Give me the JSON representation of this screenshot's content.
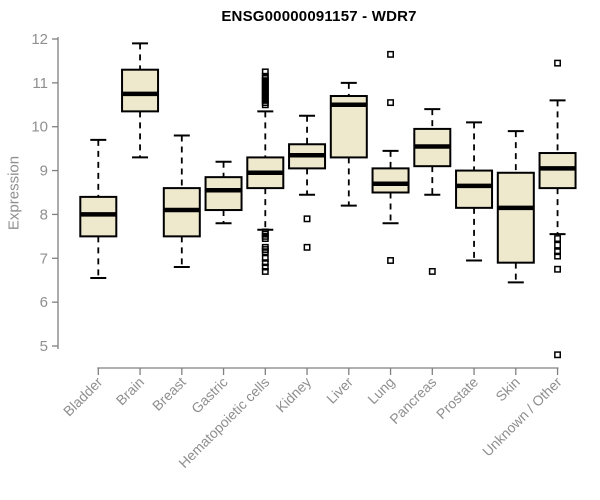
{
  "title": "ENSG00000091157 - WDR7",
  "colors": {
    "box_fill": "#EEE8CD",
    "box_stroke": "#000000",
    "axis": "#808080",
    "labels": "#8f8f8f",
    "title": "#000000",
    "background": "#ffffff"
  },
  "chart_data": {
    "type": "boxplot",
    "title": "ENSG00000091157 - WDR7",
    "xlabel": "",
    "ylabel": "Expression",
    "ylim": [
      5,
      12
    ],
    "yticks": [
      5,
      6,
      7,
      8,
      9,
      10,
      11,
      12
    ],
    "grid": false,
    "legend": null,
    "x_label_rotation": 45,
    "categories": [
      "Bladder",
      "Brain",
      "Breast",
      "Gastric",
      "Hematopoietic cells",
      "Kidney",
      "Liver",
      "Lung",
      "Pancreas",
      "Prostate",
      "Skin",
      "Unknown / Other"
    ],
    "series": [
      {
        "category": "Bladder",
        "whisker_low": 6.55,
        "q1": 7.5,
        "median": 8.0,
        "q3": 8.4,
        "whisker_high": 9.7,
        "outliers": []
      },
      {
        "category": "Brain",
        "whisker_low": 9.3,
        "q1": 10.35,
        "median": 10.75,
        "q3": 11.3,
        "whisker_high": 11.9,
        "outliers": []
      },
      {
        "category": "Breast",
        "whisker_low": 6.8,
        "q1": 7.5,
        "median": 8.1,
        "q3": 8.6,
        "whisker_high": 9.8,
        "outliers": []
      },
      {
        "category": "Gastric",
        "whisker_low": 7.8,
        "q1": 8.1,
        "median": 8.55,
        "q3": 8.85,
        "whisker_high": 9.2,
        "outliers": []
      },
      {
        "category": "Hematopoietic cells",
        "whisker_low": 7.65,
        "q1": 8.6,
        "median": 8.95,
        "q3": 9.3,
        "whisker_high": 10.35,
        "outliers": [
          11.25,
          11.15,
          11.1,
          11.05,
          11.0,
          10.95,
          10.9,
          10.85,
          10.8,
          10.75,
          10.7,
          10.65,
          10.6,
          10.55,
          10.5,
          7.6,
          7.55,
          7.5,
          7.45,
          7.25,
          7.2,
          7.15,
          7.0,
          6.9,
          6.8,
          6.7
        ]
      },
      {
        "category": "Kidney",
        "whisker_low": 8.45,
        "q1": 9.05,
        "median": 9.35,
        "q3": 9.6,
        "whisker_high": 10.25,
        "outliers": [
          7.9,
          7.25
        ]
      },
      {
        "category": "Liver",
        "whisker_low": 8.2,
        "q1": 9.3,
        "median": 10.5,
        "q3": 10.7,
        "whisker_high": 11.0,
        "outliers": []
      },
      {
        "category": "Lung",
        "whisker_low": 7.8,
        "q1": 8.5,
        "median": 8.7,
        "q3": 9.05,
        "whisker_high": 9.45,
        "outliers": [
          11.65,
          10.55,
          6.95
        ]
      },
      {
        "category": "Pancreas",
        "whisker_low": 8.45,
        "q1": 9.1,
        "median": 9.55,
        "q3": 9.95,
        "whisker_high": 10.4,
        "outliers": [
          6.7
        ]
      },
      {
        "category": "Prostate",
        "whisker_low": 6.95,
        "q1": 8.15,
        "median": 8.65,
        "q3": 9.0,
        "whisker_high": 10.1,
        "outliers": []
      },
      {
        "category": "Skin",
        "whisker_low": 6.45,
        "q1": 6.9,
        "median": 8.15,
        "q3": 8.95,
        "whisker_high": 9.9,
        "outliers": []
      },
      {
        "category": "Unknown / Other",
        "whisker_low": 7.55,
        "q1": 8.6,
        "median": 9.05,
        "q3": 9.4,
        "whisker_high": 10.6,
        "outliers": [
          11.45,
          7.45,
          7.3,
          7.15,
          7.05,
          6.75,
          4.8
        ]
      }
    ]
  }
}
